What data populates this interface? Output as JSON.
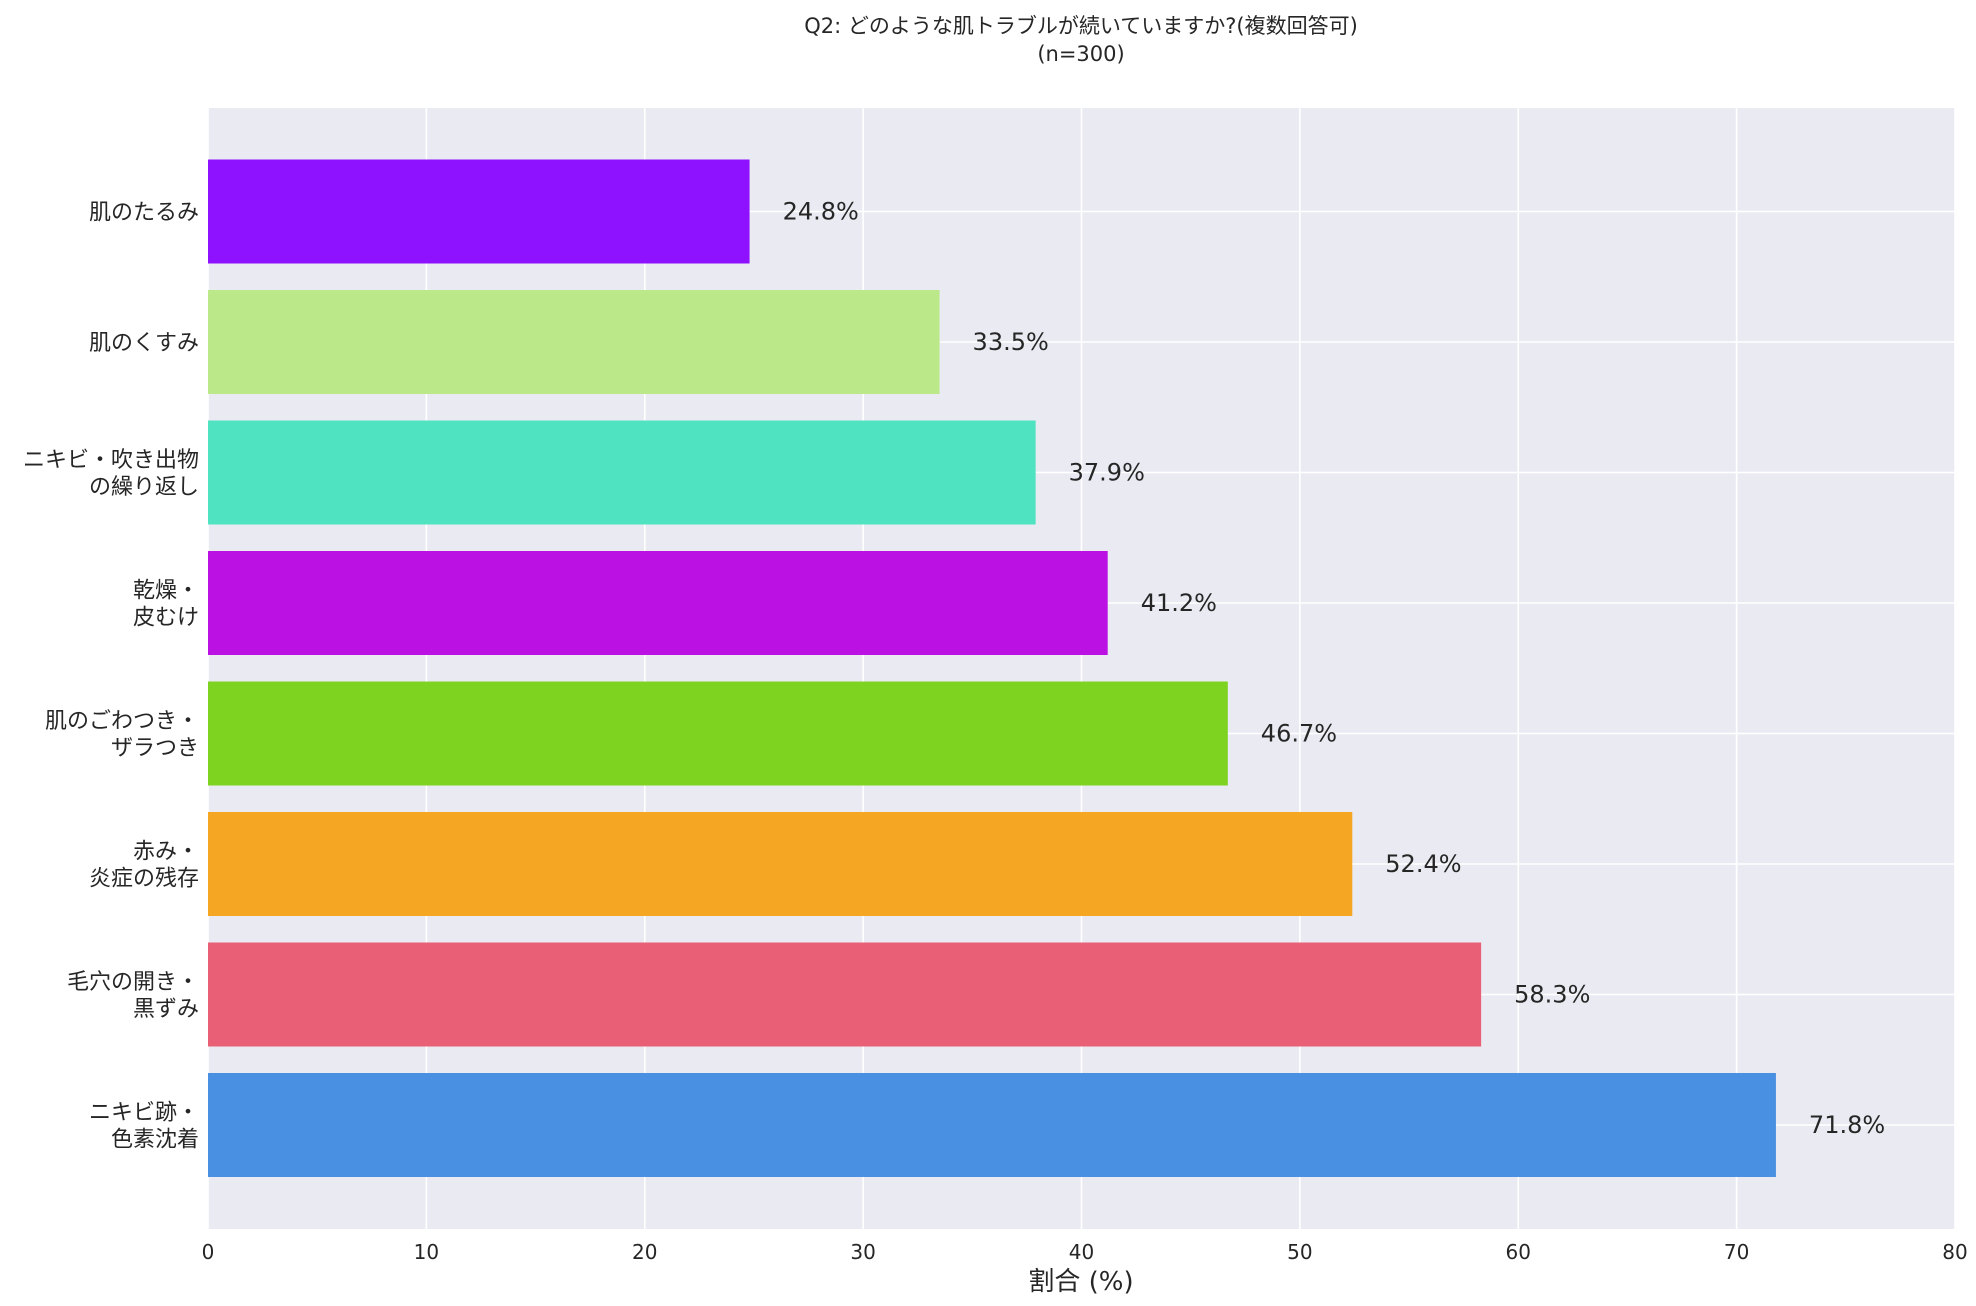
{
  "chart_data": {
    "type": "bar",
    "orientation": "horizontal",
    "title": "Q2: どのような肌トラブルが続いていますか?(複数回答可)",
    "subtitle": "(n=300)",
    "xlabel": "割合 (%)",
    "ylabel": "",
    "xlim": [
      0,
      80
    ],
    "xticks": [
      "0",
      "10",
      "20",
      "30",
      "40",
      "50",
      "60",
      "70",
      "80"
    ],
    "grid": true,
    "categories": [
      [
        "肌のたるみ"
      ],
      [
        "肌のくすみ"
      ],
      [
        "ニキビ・吹き出物",
        "の繰り返し"
      ],
      [
        "乾燥・",
        "皮むけ"
      ],
      [
        "肌のごわつき・",
        "ザラつき"
      ],
      [
        "赤み・",
        "炎症の残存"
      ],
      [
        "毛穴の開き・",
        "黒ずみ"
      ],
      [
        "ニキビ跡・",
        "色素沈着"
      ]
    ],
    "values": [
      24.8,
      33.5,
      37.9,
      41.2,
      46.7,
      52.4,
      58.3,
      71.8
    ],
    "value_labels": [
      "24.8%",
      "33.5%",
      "37.9%",
      "41.2%",
      "46.7%",
      "52.4%",
      "58.3%",
      "71.8%"
    ],
    "colors": [
      "#8e12ff",
      "#bbe98a",
      "#50e3c2",
      "#bb12e3",
      "#7ed321",
      "#f5a623",
      "#e95f76",
      "#4a90e2"
    ],
    "background": "#eaeaf2"
  }
}
